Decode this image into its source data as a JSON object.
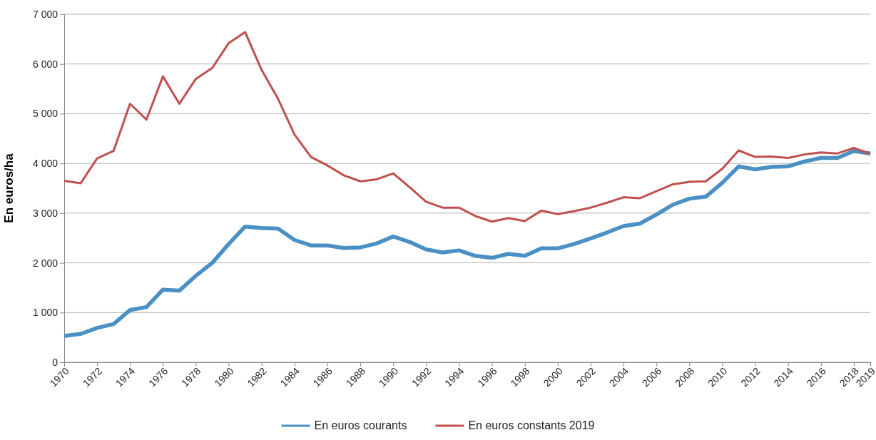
{
  "chart_data": {
    "type": "line",
    "ylabel": "En euros/ha",
    "categories": [
      "1970",
      null,
      "1972",
      null,
      "1974",
      null,
      "1976",
      null,
      "1978",
      null,
      "1980",
      null,
      "1982",
      null,
      "1984",
      null,
      "1986",
      null,
      "1988",
      null,
      "1990",
      null,
      "1992",
      null,
      "1994",
      null,
      "1996",
      null,
      "1998",
      null,
      "2000",
      null,
      "2002",
      null,
      "2004",
      null,
      "2006",
      null,
      "2008",
      null,
      "2010",
      null,
      "2012",
      null,
      "2014",
      null,
      "2016",
      null,
      "2018",
      "2019"
    ],
    "series": [
      {
        "name": "En euros courants",
        "color": "#4a90c4",
        "values": [
          530,
          570,
          690,
          770,
          1050,
          1110,
          1460,
          1440,
          1740,
          2000,
          2380,
          2730,
          2700,
          2690,
          2460,
          2350,
          2350,
          2300,
          2310,
          2390,
          2530,
          2420,
          2270,
          2210,
          2250,
          2140,
          2100,
          2180,
          2140,
          2290,
          2290,
          2380,
          2490,
          2610,
          2740,
          2790,
          2970,
          3170,
          3290,
          3330,
          3610,
          3940,
          3880,
          3930,
          3940,
          4040,
          4110,
          4110,
          4250,
          4200
        ]
      },
      {
        "name": "En euros constants 2019",
        "color": "#c0504d",
        "values": [
          3650,
          3600,
          4100,
          4250,
          5200,
          4880,
          5750,
          5200,
          5700,
          5920,
          6420,
          6640,
          5880,
          5300,
          4580,
          4130,
          3960,
          3760,
          3640,
          3680,
          3800,
          3520,
          3230,
          3110,
          3110,
          2940,
          2830,
          2900,
          2840,
          3050,
          2980,
          3040,
          3110,
          3210,
          3320,
          3300,
          3440,
          3580,
          3630,
          3640,
          3890,
          4260,
          4130,
          4140,
          4110,
          4180,
          4220,
          4200,
          4310,
          4190
        ]
      }
    ],
    "ylim": [
      0,
      7000
    ],
    "yticks": [
      0,
      {
        "value": 1000,
        "label": "1 000"
      },
      {
        "value": 2000,
        "label": "2 000"
      },
      {
        "value": 3000,
        "label": "3 000"
      },
      {
        "value": 4000,
        "label": "4 000"
      },
      {
        "value": 5000,
        "label": "5 000"
      },
      {
        "value": 6000,
        "label": "6 000"
      },
      {
        "value": 7000,
        "label": "7 000"
      }
    ],
    "grid": "y",
    "legend": "bottom",
    "marker": "none",
    "line_style": "solid"
  }
}
